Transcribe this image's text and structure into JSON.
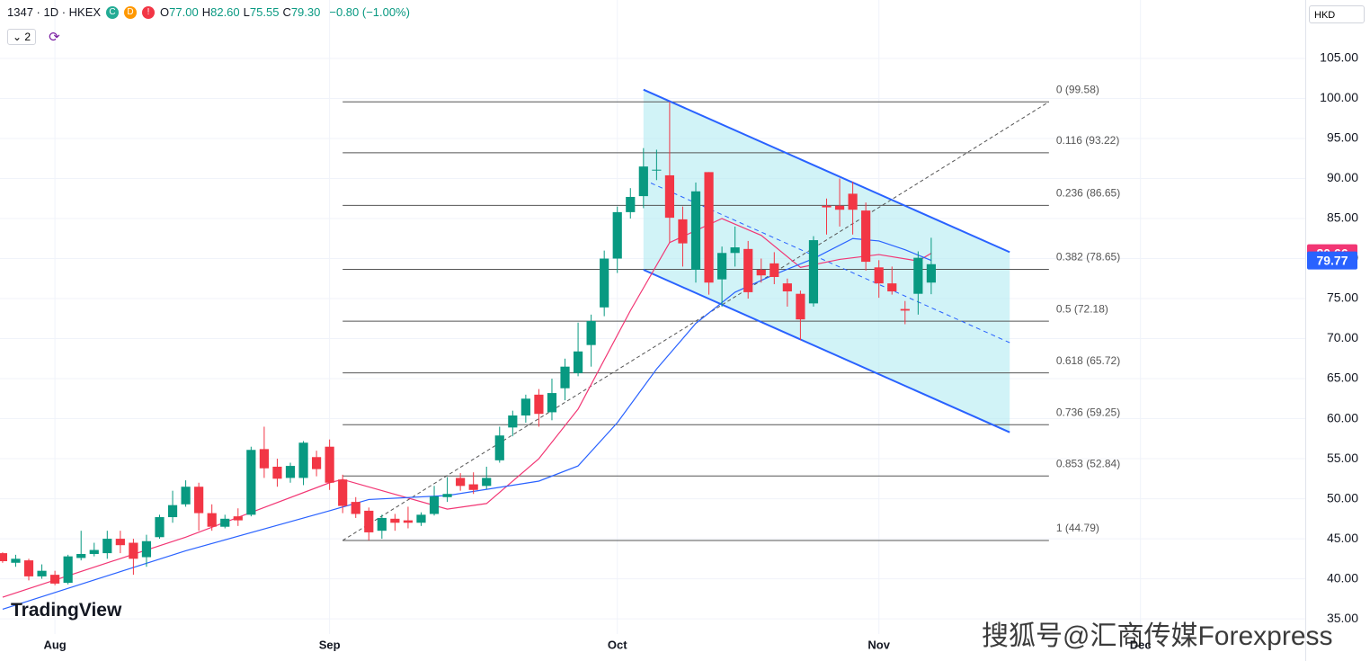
{
  "header": {
    "symbol": "1347 · 1D · HKEX",
    "badges": [
      "C",
      "D",
      "!"
    ],
    "ohlc": [
      {
        "key": "O",
        "value": "77.00"
      },
      {
        "key": "H",
        "value": "82.60"
      },
      {
        "key": "L",
        "value": "75.55"
      },
      {
        "key": "C",
        "value": "79.30"
      }
    ],
    "change": "−0.80 (−1.00%)",
    "indicators": "2",
    "currency": "HKD",
    "logo": "TradingView",
    "watermark": "搜狐号@汇商传媒Forexpress"
  },
  "chart_data": {
    "type": "candlestick",
    "open": [
      43.2,
      42.0,
      42.3,
      40.3,
      40.5,
      39.5,
      42.6,
      43.1,
      43.2,
      45.0,
      44.5,
      42.7,
      45.2,
      47.7,
      49.3,
      51.5,
      48.2,
      46.5,
      47.8,
      48.0,
      56.2,
      54.0,
      52.6,
      52.6,
      55.2,
      56.5,
      52.4,
      49.6,
      48.5,
      46.0,
      47.5,
      47.3,
      47.0,
      48.1,
      50.2,
      52.6,
      51.8,
      51.6,
      54.8,
      58.9,
      60.4,
      63.0,
      60.8,
      63.8,
      65.7,
      69.2,
      73.9,
      80.0,
      85.8,
      87.8,
      91.0,
      90.4,
      84.9,
      78.6,
      90.8,
      77.4,
      80.7,
      81.2,
      78.6,
      79.4,
      76.9,
      75.6,
      74.4,
      86.6,
      86.6,
      88.1,
      86.0,
      78.9,
      76.9,
      73.7,
      75.6,
      77.0
    ],
    "high": [
      43.3,
      43.0,
      42.5,
      41.8,
      41.0,
      43.0,
      46.0,
      44.5,
      46.0,
      46.0,
      45.0,
      45.5,
      48.0,
      51.0,
      52.3,
      52.0,
      49.3,
      48.0,
      48.8,
      56.5,
      59.0,
      55.0,
      54.5,
      57.2,
      56.0,
      57.4,
      53.0,
      50.2,
      48.9,
      48.0,
      48.1,
      49.0,
      48.3,
      51.6,
      52.7,
      53.2,
      53.3,
      54.0,
      59.0,
      61.0,
      63.0,
      63.7,
      65.0,
      67.5,
      72.0,
      73.0,
      81.0,
      86.5,
      88.8,
      93.8,
      93.6,
      99.58,
      86.5,
      89.5,
      90.8,
      81.5,
      84.0,
      82.2,
      80.0,
      80.8,
      77.5,
      76.0,
      82.8,
      87.5,
      90.0,
      89.6,
      87.0,
      79.8,
      79.0,
      74.7,
      80.9,
      82.6
    ],
    "low": [
      42.0,
      41.5,
      39.8,
      40.0,
      39.2,
      39.3,
      42.3,
      42.8,
      42.5,
      43.2,
      40.5,
      41.5,
      45.0,
      47.0,
      49.0,
      46.0,
      46.0,
      46.3,
      46.6,
      47.8,
      52.6,
      51.5,
      52.0,
      51.7,
      52.8,
      51.1,
      48.2,
      47.6,
      44.8,
      45.0,
      46.0,
      46.3,
      46.6,
      47.9,
      49.6,
      51.0,
      50.6,
      51.2,
      54.5,
      57.8,
      59.5,
      59.0,
      59.8,
      62.3,
      65.3,
      66.5,
      72.8,
      78.2,
      85.0,
      86.3,
      89.8,
      82.0,
      79.0,
      77.0,
      75.5,
      74.0,
      79.0,
      75.0,
      77.0,
      76.8,
      74.0,
      69.8,
      74.0,
      83.0,
      84.0,
      83.0,
      78.5,
      75.1,
      75.5,
      71.8,
      73.0,
      75.55
    ],
    "close": [
      42.2,
      42.5,
      40.3,
      41.0,
      39.4,
      42.8,
      43.1,
      43.6,
      45.0,
      44.2,
      42.5,
      44.7,
      47.7,
      49.2,
      51.5,
      48.2,
      46.5,
      47.5,
      47.3,
      56.1,
      53.8,
      52.5,
      54.1,
      57.0,
      53.7,
      52.0,
      49.1,
      48.1,
      45.8,
      47.6,
      47.0,
      47.0,
      48.0,
      50.3,
      50.6,
      51.6,
      51.1,
      52.6,
      57.9,
      60.4,
      62.5,
      60.6,
      63.2,
      66.5,
      68.4,
      72.2,
      80.0,
      85.8,
      87.7,
      91.5,
      91.1,
      85.1,
      81.9,
      88.4,
      77.0,
      80.7,
      81.4,
      75.8,
      77.9,
      77.7,
      75.9,
      72.4,
      82.3,
      86.4,
      86.1,
      86.1,
      79.6,
      76.9,
      75.9,
      73.5,
      80.1,
      79.3
    ],
    "up_color": "#089981",
    "down_color": "#f23645",
    "series": [
      {
        "color": "#f23674",
        "x": [
          0,
          14,
          25,
          26,
          34,
          37,
          41,
          44,
          48,
          51,
          55,
          58,
          61,
          64,
          67,
          70,
          71
        ],
        "values": [
          37.7,
          45.2,
          52.0,
          52.4,
          48.7,
          49.4,
          55.0,
          61.2,
          73.5,
          82.0,
          85.0,
          82.9,
          78.9,
          79.9,
          80.5,
          79.7,
          80.66
        ],
        "last_value": 80.66
      },
      {
        "color": "#2962ff",
        "x": [
          0,
          14,
          25,
          28,
          34,
          41,
          44,
          47,
          50,
          53,
          56,
          59,
          62,
          65,
          67,
          69,
          71
        ],
        "values": [
          36.2,
          43.5,
          48.5,
          49.9,
          50.4,
          52.2,
          54.1,
          59.5,
          66.2,
          71.9,
          75.8,
          78.0,
          80.0,
          82.5,
          82.2,
          81.1,
          79.77
        ],
        "last_value": 79.77
      }
    ],
    "fib": {
      "x": [
        26,
        80
      ],
      "color": "#555555",
      "levels": [
        {
          "value": 99.58,
          "label": "0 (99.58)"
        },
        {
          "value": 93.22,
          "label": "0.116 (93.22)"
        },
        {
          "value": 86.65,
          "label": "0.236 (86.65)"
        },
        {
          "value": 78.65,
          "label": "0.382 (78.65)"
        },
        {
          "value": 72.18,
          "label": "0.5 (72.18)"
        },
        {
          "value": 65.72,
          "label": "0.618 (65.72)"
        },
        {
          "value": 59.25,
          "label": "0.736 (59.25)"
        },
        {
          "value": 52.84,
          "label": "0.853 (52.84)"
        },
        {
          "value": 44.79,
          "label": "1 (44.79)"
        }
      ]
    },
    "trend_line": {
      "x": [
        26,
        80
      ],
      "values": [
        44.79,
        99.58
      ],
      "color": "#555555"
    },
    "channel": {
      "x": [
        49,
        77
      ],
      "upper": [
        101.1,
        80.8
      ],
      "middle": [
        89.85,
        69.5
      ],
      "lower": [
        78.6,
        58.3
      ],
      "color": "#2962ff",
      "fill": "#b2ebf2"
    },
    "xlim": [
      -0.2,
      99.6
    ],
    "xticks": [
      {
        "value": 4,
        "label": "Aug"
      },
      {
        "value": 25,
        "label": "Sep"
      },
      {
        "value": 47,
        "label": "Oct"
      },
      {
        "value": 67,
        "label": "Nov"
      },
      {
        "value": 87,
        "label": "Dec"
      }
    ],
    "ylim": [
      33.1,
      112.3
    ],
    "yticks": [
      {
        "value": 35,
        "label": "35.00"
      },
      {
        "value": 40,
        "label": "40.00"
      },
      {
        "value": 45,
        "label": "45.00"
      },
      {
        "value": 50,
        "label": "50.00"
      },
      {
        "value": 55,
        "label": "55.00"
      },
      {
        "value": 60,
        "label": "60.00"
      },
      {
        "value": 65,
        "label": "65.00"
      },
      {
        "value": 70,
        "label": "70.00"
      },
      {
        "value": 75,
        "label": "75.00"
      },
      {
        "value": 80,
        "label": "80.00"
      },
      {
        "value": 85,
        "label": "85.00"
      },
      {
        "value": 90,
        "label": "90.00"
      },
      {
        "value": 95,
        "label": "95.00"
      },
      {
        "value": 100,
        "label": "100.00"
      },
      {
        "value": 105,
        "label": "105.00"
      }
    ],
    "grid": true
  }
}
